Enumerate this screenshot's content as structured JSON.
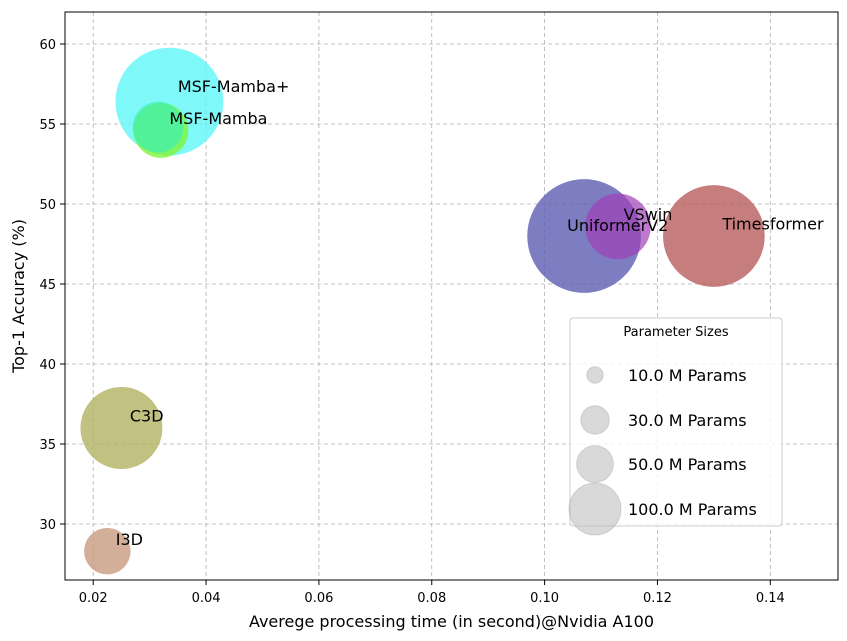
{
  "chart_data": {
    "type": "scatter",
    "subtype": "bubble",
    "xlabel": "Averege processing time (in second)@Nvidia A100",
    "ylabel": "Top-1 Accuracy (%)",
    "xlim": [
      0.015,
      0.152
    ],
    "ylim": [
      26.5,
      62
    ],
    "xticks": [
      0.02,
      0.04,
      0.06,
      0.08,
      0.1,
      0.12,
      0.14
    ],
    "xtick_labels": [
      "0.02",
      "0.04",
      "0.06",
      "0.08",
      "0.10",
      "0.12",
      "0.14"
    ],
    "yticks": [
      30,
      35,
      40,
      45,
      50,
      55,
      60
    ],
    "ytick_labels": [
      "30",
      "35",
      "40",
      "45",
      "50",
      "55",
      "60"
    ],
    "grid": true,
    "points": [
      {
        "name": "MSF-Mamba+",
        "x": 0.0335,
        "y": 56.4,
        "params_m": 135,
        "color": "#5ff6f8",
        "opacity": 0.8,
        "label_dx": 0.0015,
        "label_dy": 0.6
      },
      {
        "name": "MSF-Mamba",
        "x": 0.032,
        "y": 54.6,
        "params_m": 35,
        "color": "#7ff53a",
        "opacity": 0.8,
        "label_dx": 0.0015,
        "label_dy": 0.4
      },
      {
        "name": "MSF-Mamba",
        "x": 0.0315,
        "y": 54.8,
        "params_m": 30,
        "color": "#3cf0b0",
        "opacity": 0.7,
        "label_dx": 0.0015,
        "label_dy": 0.4,
        "hide_label": true
      },
      {
        "name": "UniformerV2",
        "x": 0.107,
        "y": 48.0,
        "params_m": 150,
        "color": "#5d5db3",
        "opacity": 0.8,
        "label_dx": -0.003,
        "label_dy": 0.3
      },
      {
        "name": "VSwin",
        "x": 0.113,
        "y": 48.6,
        "params_m": 50,
        "color": "#a040b8",
        "opacity": 0.7,
        "label_dx": 0.001,
        "label_dy": 0.4
      },
      {
        "name": "Timesformer",
        "x": 0.13,
        "y": 48.0,
        "params_m": 120,
        "color": "#b85c5c",
        "opacity": 0.8,
        "label_dx": 0.0015,
        "label_dy": 0.4
      },
      {
        "name": "C3D",
        "x": 0.025,
        "y": 36.0,
        "params_m": 78,
        "color": "#b2b261",
        "opacity": 0.8,
        "label_dx": 0.0015,
        "label_dy": 0.4
      },
      {
        "name": "I3D",
        "x": 0.0225,
        "y": 28.3,
        "params_m": 25,
        "color": "#c89a80",
        "opacity": 0.8,
        "label_dx": 0.0015,
        "label_dy": 0.4
      }
    ],
    "legend": {
      "title": "Parameter Sizes",
      "position": "lower-right",
      "entries": [
        {
          "params_m": 10.0,
          "label": "10.0 M Params"
        },
        {
          "params_m": 30.0,
          "label": "30.0 M Params"
        },
        {
          "params_m": 50.0,
          "label": "50.0 M Params"
        },
        {
          "params_m": 100.0,
          "label": "100.0 M Params"
        }
      ],
      "marker_color": "#c0c0c0"
    }
  }
}
